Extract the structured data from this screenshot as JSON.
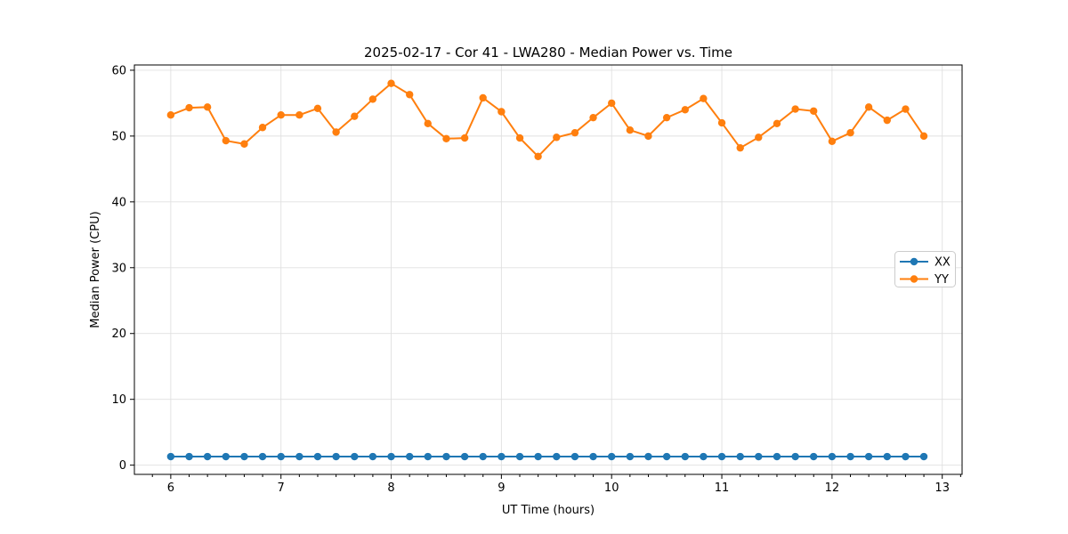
{
  "figure": {
    "background": "#ffffff"
  },
  "chart_data": {
    "type": "line",
    "title": "2025-02-17 - Cor 41 - LWA280 - Median Power vs. Time",
    "xlabel": "UT Time (hours)",
    "ylabel": "Median Power (CPU)",
    "xlim": [
      5.67,
      13.18
    ],
    "ylim": [
      -1.4,
      60.8
    ],
    "x_ticks": [
      6,
      7,
      8,
      9,
      10,
      11,
      12,
      13
    ],
    "y_ticks": [
      0,
      10,
      20,
      30,
      40,
      50,
      60
    ],
    "x_minor_step": 0.166667,
    "grid": true,
    "grid_color": "#e0e0e0",
    "legend_position": "center right",
    "x": [
      6.0,
      6.167,
      6.333,
      6.5,
      6.667,
      6.833,
      7.0,
      7.167,
      7.333,
      7.5,
      7.667,
      7.833,
      8.0,
      8.167,
      8.333,
      8.5,
      8.667,
      8.833,
      9.0,
      9.167,
      9.333,
      9.5,
      9.667,
      9.833,
      10.0,
      10.167,
      10.333,
      10.5,
      10.667,
      10.833,
      11.0,
      11.167,
      11.333,
      11.5,
      11.667,
      11.833,
      12.0,
      12.167,
      12.333,
      12.5,
      12.667,
      12.833
    ],
    "series": [
      {
        "name": "XX",
        "color": "#1f77b4",
        "values": [
          1.3,
          1.3,
          1.3,
          1.3,
          1.3,
          1.3,
          1.3,
          1.3,
          1.3,
          1.3,
          1.3,
          1.3,
          1.3,
          1.3,
          1.3,
          1.3,
          1.3,
          1.3,
          1.3,
          1.3,
          1.3,
          1.3,
          1.3,
          1.3,
          1.3,
          1.3,
          1.3,
          1.3,
          1.3,
          1.3,
          1.3,
          1.3,
          1.3,
          1.3,
          1.3,
          1.3,
          1.3,
          1.3,
          1.3,
          1.3,
          1.3,
          1.3
        ]
      },
      {
        "name": "YY",
        "color": "#ff7f0e",
        "values": [
          53.2,
          54.3,
          54.4,
          49.3,
          48.8,
          51.3,
          53.2,
          53.2,
          54.2,
          50.6,
          53.0,
          55.6,
          58.0,
          56.3,
          51.9,
          49.6,
          49.7,
          55.8,
          53.7,
          49.7,
          46.9,
          49.8,
          50.5,
          52.8,
          55.0,
          50.9,
          50.0,
          52.8,
          54.0,
          55.7,
          52.0,
          48.2,
          49.8,
          51.9,
          54.1,
          53.8,
          49.2,
          50.5,
          54.4,
          52.4,
          54.1,
          50.0
        ]
      }
    ]
  }
}
